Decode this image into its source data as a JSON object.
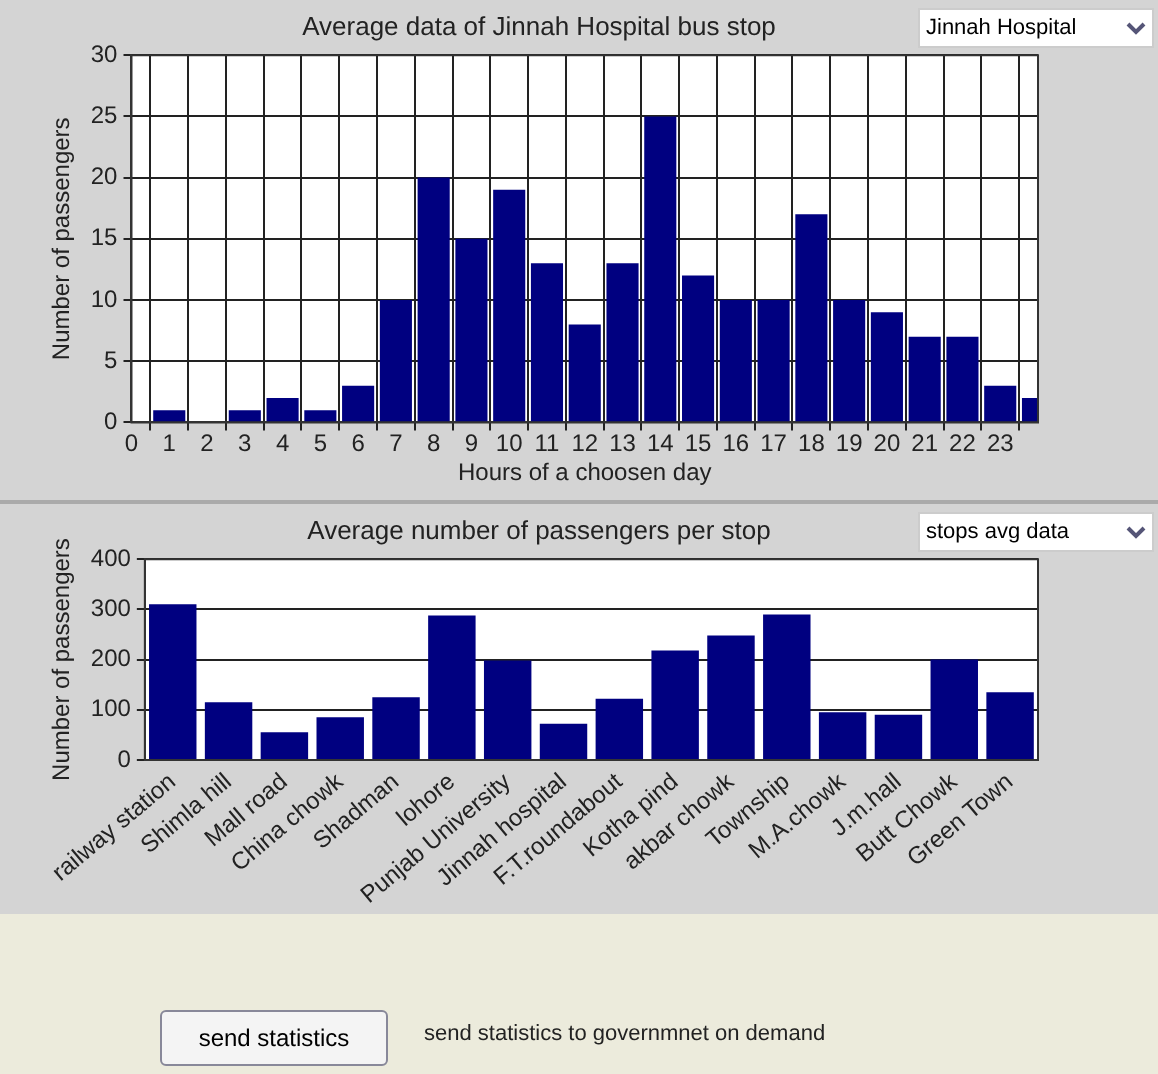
{
  "chart_data": [
    {
      "type": "bar",
      "title": "Average data of Jinnah Hospital bus stop",
      "xlabel": "Hours of a choosen day",
      "ylabel": "Number of passengers",
      "x": [
        1,
        2,
        3,
        4,
        5,
        6,
        7,
        8,
        9,
        10,
        11,
        12,
        13,
        14,
        15,
        16,
        17,
        18,
        19,
        20,
        21,
        22,
        23,
        24
      ],
      "values": [
        1,
        0,
        1,
        2,
        1,
        3,
        10,
        20,
        15,
        19,
        13,
        8,
        13,
        25,
        12,
        10,
        10,
        17,
        10,
        9,
        7,
        7,
        3,
        2
      ],
      "color": "#000080",
      "xlim": [
        0,
        24
      ],
      "xticks": [
        0,
        1,
        2,
        3,
        4,
        5,
        6,
        7,
        8,
        9,
        10,
        11,
        12,
        13,
        14,
        15,
        16,
        17,
        18,
        19,
        20,
        21,
        22,
        23
      ],
      "ylim": [
        0,
        30
      ],
      "yticks": [
        0,
        5,
        10,
        15,
        20,
        25,
        30
      ],
      "grid": true,
      "annotations": [
        "Jinnah Hospital"
      ]
    },
    {
      "type": "bar",
      "title": "Average number of passengers per stop",
      "ylabel": "Number of passengers",
      "categories": [
        "railway station",
        "Shimla hill",
        "Mall road",
        "China chowk",
        "Shadman",
        "lohore",
        "Punjab University",
        "Jinnah hospital",
        "F.T.roundabout",
        "Kotha pind",
        "akbar chowk",
        "Township",
        "M.A.chowk",
        "J.m.hall",
        "Butt Chowk",
        "Green Town"
      ],
      "values": [
        310,
        115,
        55,
        85,
        125,
        288,
        198,
        72,
        122,
        218,
        248,
        290,
        95,
        90,
        200,
        135
      ],
      "color": "#000080",
      "ylim": [
        0,
        400
      ],
      "yticks": [
        0,
        100,
        200,
        300,
        400
      ],
      "grid": "y",
      "annotations": [
        "stops avg data",
        "send statistics",
        "send statistics to governmnet on demand"
      ]
    }
  ]
}
